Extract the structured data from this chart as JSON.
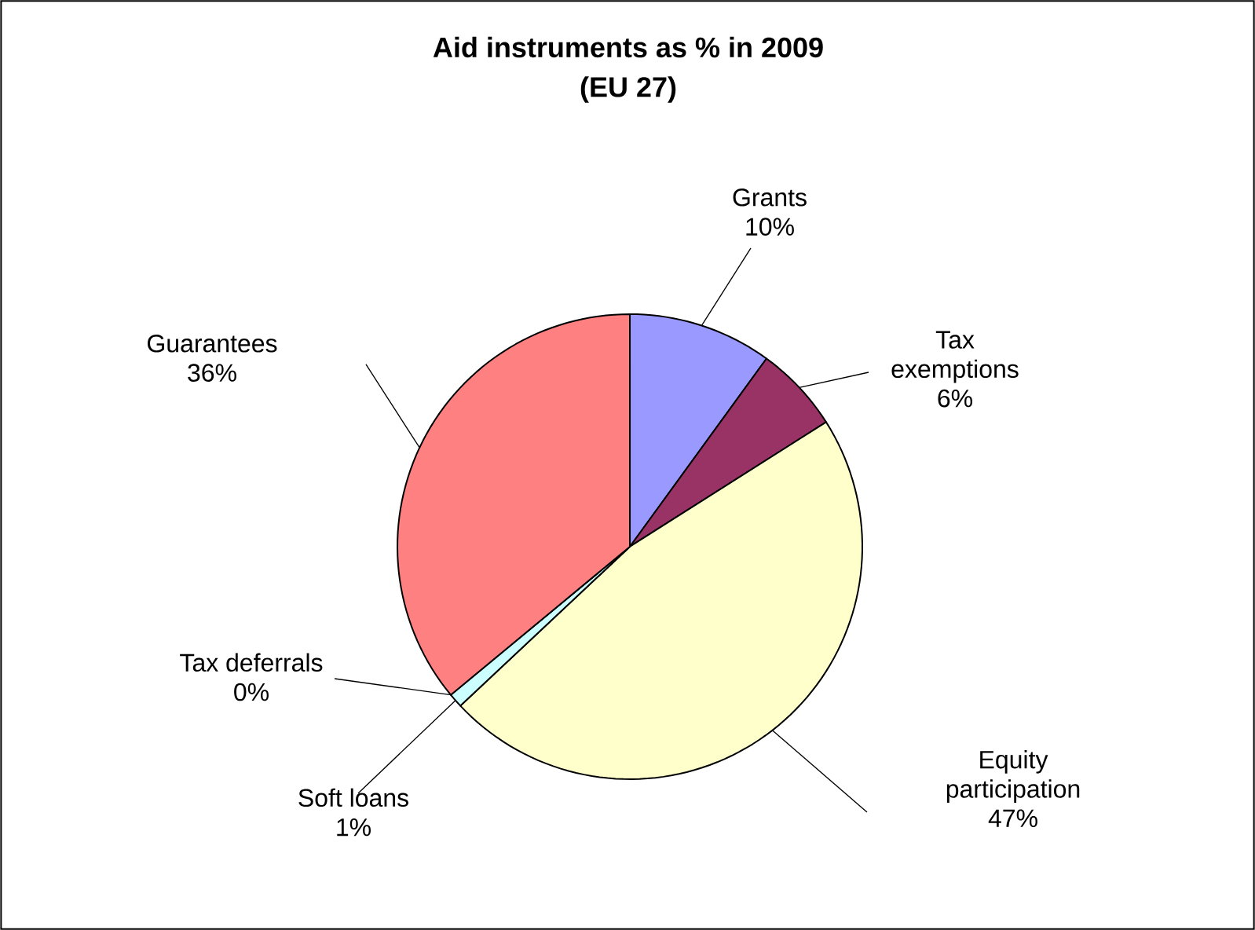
{
  "chart_data": {
    "type": "pie",
    "title": "Aid instruments as % in 2009",
    "subtitle": "(EU 27)",
    "categories": [
      "Grants",
      "Tax exemptions",
      "Equity participation",
      "Soft loans",
      "Tax deferrals",
      "Guarantees"
    ],
    "values": [
      10,
      6,
      47,
      1,
      0,
      36
    ],
    "value_labels": [
      "10%",
      "6%",
      "47%",
      "1%",
      "0%",
      "36%"
    ],
    "colors": [
      "#9999ff",
      "#993366",
      "#ffffcc",
      "#ccffff",
      "#ffffff",
      "#ff8080"
    ]
  }
}
